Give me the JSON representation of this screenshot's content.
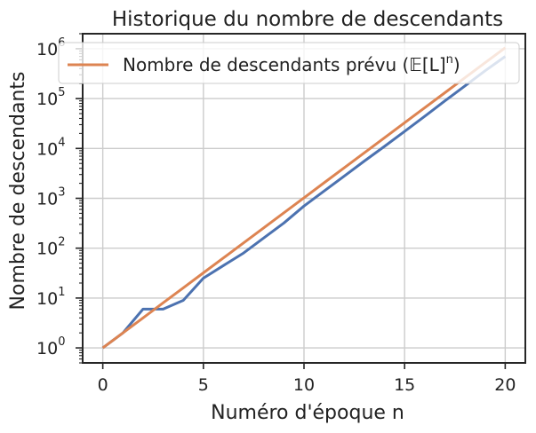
{
  "chart_data": {
    "type": "line",
    "title": "Historique du nombre de descendants",
    "xlabel": "Numéro d'époque n",
    "ylabel": "Nombre de descendants",
    "xlim": [
      -1,
      21
    ],
    "ylim": [
      0.5,
      2000000
    ],
    "yscale": "log",
    "grid": true,
    "legend_position": "top",
    "x_ticks": [
      {
        "value": 0,
        "label": "0"
      },
      {
        "value": 5,
        "label": "5"
      },
      {
        "value": 10,
        "label": "10"
      },
      {
        "value": 15,
        "label": "15"
      },
      {
        "value": 20,
        "label": "20"
      }
    ],
    "y_ticks": [
      {
        "value": 1,
        "base": "10",
        "exp": "0"
      },
      {
        "value": 10,
        "base": "10",
        "exp": "1"
      },
      {
        "value": 100,
        "base": "10",
        "exp": "2"
      },
      {
        "value": 1000,
        "base": "10",
        "exp": "3"
      },
      {
        "value": 10000,
        "base": "10",
        "exp": "4"
      },
      {
        "value": 100000,
        "base": "10",
        "exp": "5"
      },
      {
        "value": 1000000,
        "base": "10",
        "exp": "6"
      }
    ],
    "series": [
      {
        "name": "",
        "color": "#4c72b0",
        "x": [
          0,
          1,
          2,
          3,
          4,
          5,
          6,
          7,
          8,
          9,
          10,
          11,
          12,
          13,
          14,
          15,
          16,
          17,
          18,
          19,
          20
        ],
        "values": [
          1,
          2,
          6,
          6,
          9,
          25,
          45,
          80,
          160,
          320,
          700,
          1400,
          2800,
          5600,
          11000,
          22000,
          44000,
          90000,
          180000,
          360000,
          700000
        ]
      },
      {
        "name": "Nombre de descendants prévu (𝔼[L]ⁿ)",
        "color": "#dd8452",
        "x": [
          0,
          1,
          2,
          3,
          4,
          5,
          6,
          7,
          8,
          9,
          10,
          11,
          12,
          13,
          14,
          15,
          16,
          17,
          18,
          19,
          20
        ],
        "values": [
          1,
          2,
          4,
          8,
          16,
          32,
          64,
          128,
          256,
          512,
          1024,
          2048,
          4096,
          8192,
          16384,
          32768,
          65536,
          131072,
          262144,
          524288,
          1048576
        ]
      }
    ],
    "legend": {
      "label_prefix": "Nombre de descendants prévu (",
      "label_math": "𝔼[L]",
      "label_sup": "n",
      "label_suffix": ")"
    }
  },
  "colors": {
    "axes": "#262626",
    "grid": "#cccccc",
    "background": "#ffffff"
  }
}
